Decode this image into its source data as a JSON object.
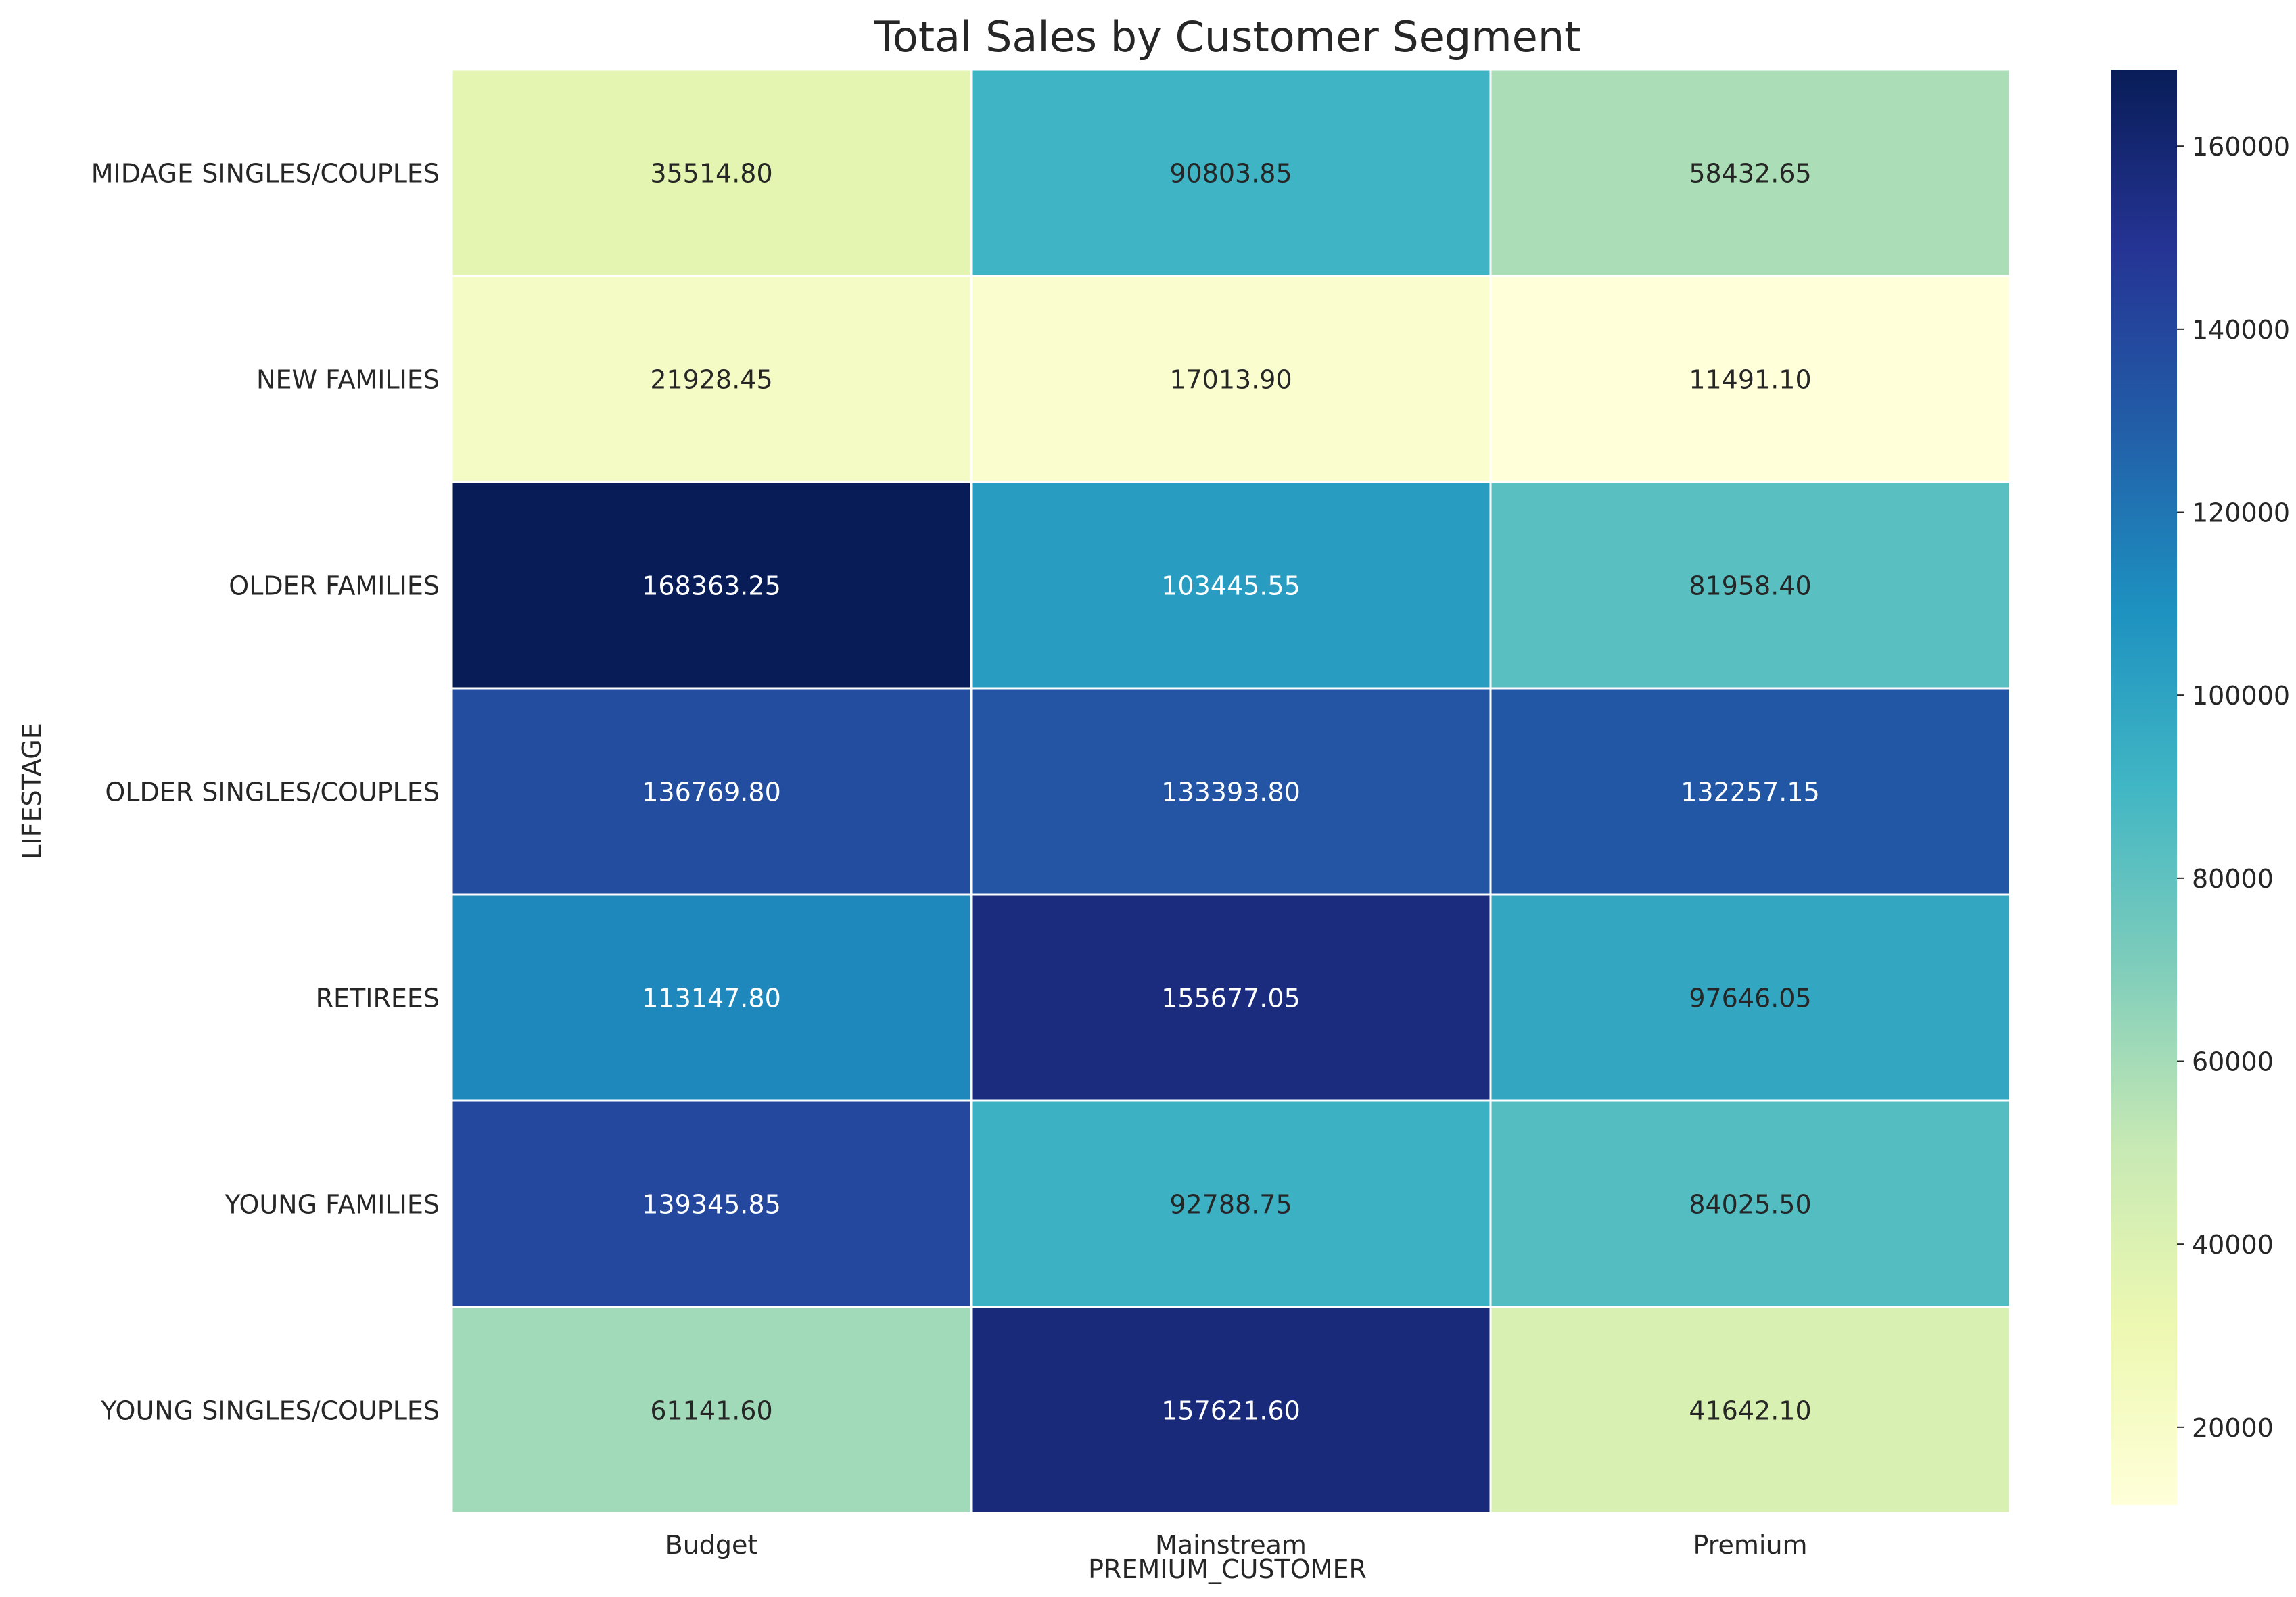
{
  "chart_data": {
    "type": "heatmap",
    "title": "Total Sales by Customer Segment",
    "xlabel": "PREMIUM_CUSTOMER",
    "ylabel": "LIFESTAGE",
    "x_categories": [
      "Budget",
      "Mainstream",
      "Premium"
    ],
    "y_categories": [
      "MIDAGE SINGLES/COUPLES",
      "NEW FAMILIES",
      "OLDER FAMILIES",
      "OLDER SINGLES/COUPLES",
      "RETIREES",
      "YOUNG FAMILIES",
      "YOUNG SINGLES/COUPLES"
    ],
    "values": [
      [
        35514.8,
        90803.85,
        58432.65
      ],
      [
        21928.45,
        17013.9,
        11491.1
      ],
      [
        168363.25,
        103445.55,
        81958.4
      ],
      [
        136769.8,
        133393.8,
        132257.15
      ],
      [
        113147.8,
        155677.05,
        97646.05
      ],
      [
        139345.85,
        92788.75,
        84025.5
      ],
      [
        61141.6,
        157621.6,
        41642.1
      ]
    ],
    "value_labels": [
      [
        "35514.80",
        "90803.85",
        "58432.65"
      ],
      [
        "21928.45",
        "17013.90",
        "11491.10"
      ],
      [
        "168363.25",
        "103445.55",
        "81958.40"
      ],
      [
        "136769.80",
        "133393.80",
        "132257.15"
      ],
      [
        "113147.80",
        "155677.05",
        "97646.05"
      ],
      [
        "139345.85",
        "92788.75",
        "84025.50"
      ],
      [
        "61141.60",
        "157621.60",
        "41642.10"
      ]
    ],
    "colormap": "YlGnBu",
    "colorbar_range": [
      11491.1,
      168363.25
    ],
    "colorbar_ticks": [
      "20000",
      "40000",
      "60000",
      "80000",
      "100000",
      "120000",
      "140000",
      "160000"
    ],
    "colorbar_tick_values": [
      20000,
      40000,
      60000,
      80000,
      100000,
      120000,
      140000,
      160000
    ],
    "colorscale_stops": [
      "#ffffd9",
      "#edf8b1",
      "#c7e9b4",
      "#7fcdbb",
      "#41b6c4",
      "#1d91c0",
      "#225ea8",
      "#253494",
      "#081d58"
    ]
  }
}
